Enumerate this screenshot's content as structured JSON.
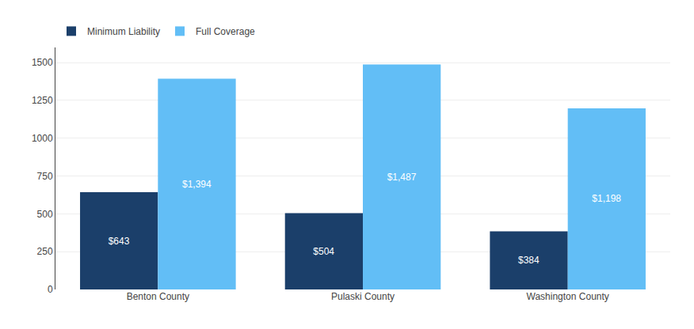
{
  "chart_data": {
    "type": "bar",
    "categories": [
      "Benton County",
      "Pulaski County",
      "Washington County"
    ],
    "series": [
      {
        "name": "Minimum Liability",
        "color": "#1b3f6a",
        "values": [
          643,
          504,
          384
        ],
        "value_labels": [
          "$643",
          "$504",
          "$384"
        ]
      },
      {
        "name": "Full Coverage",
        "color": "#62bef6",
        "values": [
          1394,
          1487,
          1198
        ],
        "value_labels": [
          "$1,394",
          "$1,487",
          "$1,198"
        ]
      }
    ],
    "ylim": [
      0,
      1600
    ],
    "yticks": [
      0,
      250,
      500,
      750,
      1000,
      1250,
      1500
    ],
    "grid": true,
    "legend": "upper left",
    "data_labels": true
  }
}
